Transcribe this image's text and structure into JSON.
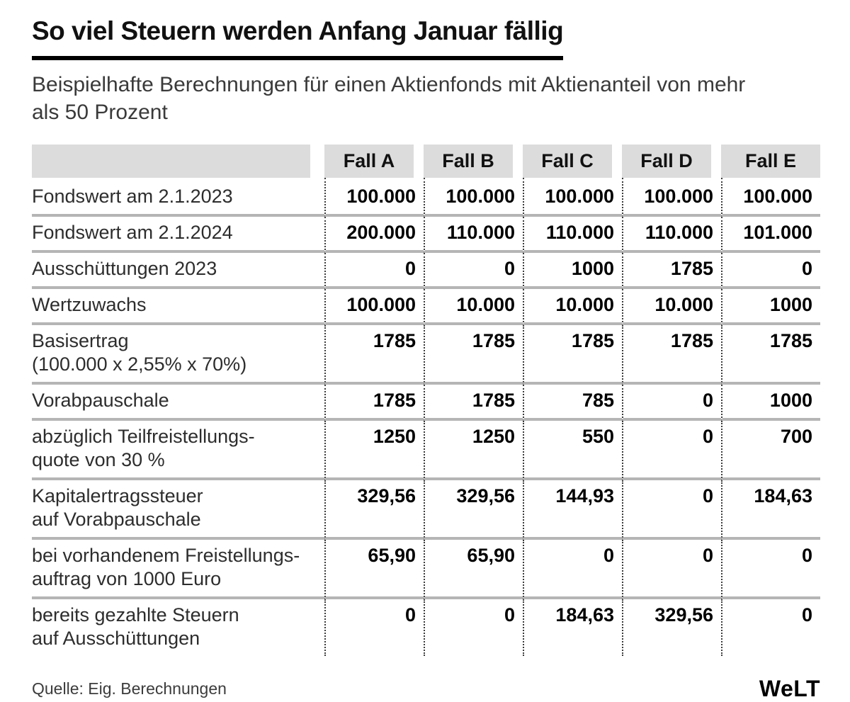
{
  "header": {
    "title": "So viel Steuern werden Anfang Januar fällig",
    "subtitle": "Beispielhafte Berechnungen für einen Aktienfonds mit Aktienanteil von mehr als 50 Prozent"
  },
  "chart_data": {
    "type": "table",
    "columns": [
      "Fall A",
      "Fall B",
      "Fall C",
      "Fall D",
      "Fall E"
    ],
    "rows": [
      {
        "label_lines": [
          "Fondswert am 2.1.2023"
        ],
        "values": [
          "100.000",
          "100.000",
          "100.000",
          "100.000",
          "100.000"
        ]
      },
      {
        "label_lines": [
          "Fondswert am 2.1.2024"
        ],
        "values": [
          "200.000",
          "110.000",
          "110.000",
          "110.000",
          "101.000"
        ]
      },
      {
        "label_lines": [
          "Ausschüttungen 2023"
        ],
        "values": [
          "0",
          "0",
          "1000",
          "1785",
          "0"
        ]
      },
      {
        "label_lines": [
          "Wertzuwachs"
        ],
        "values": [
          "100.000",
          "10.000",
          "10.000",
          "10.000",
          "1000"
        ]
      },
      {
        "label_lines": [
          "Basisertrag",
          "(100.000 x 2,55% x 70%)"
        ],
        "values": [
          "1785",
          "1785",
          "1785",
          "1785",
          "1785"
        ]
      },
      {
        "label_lines": [
          "Vorabpauschale"
        ],
        "values": [
          "1785",
          "1785",
          "785",
          "0",
          "1000"
        ]
      },
      {
        "label_lines": [
          "abzüglich Teilfreistellungs-",
          "quote von 30 %"
        ],
        "values": [
          "1250",
          "1250",
          "550",
          "0",
          "700"
        ]
      },
      {
        "label_lines": [
          "Kapitalertragssteuer",
          "auf Vorabpauschale"
        ],
        "values": [
          "329,56",
          "329,56",
          "144,93",
          "0",
          "184,63"
        ]
      },
      {
        "label_lines": [
          "bei vorhandenem Freistellungs-",
          "auftrag von 1000 Euro"
        ],
        "values": [
          "65,90",
          "65,90",
          "0",
          "0",
          "0"
        ]
      },
      {
        "label_lines": [
          "bereits gezahlte Steuern",
          "auf Ausschüttungen"
        ],
        "values": [
          "0",
          "0",
          "184,63",
          "329,56",
          "0"
        ]
      }
    ]
  },
  "footer": {
    "source": "Quelle: Eig. Berechnungen",
    "logo_text": "WeLT"
  },
  "colors": {
    "header_bg": "#dcdcdc",
    "row_separator": "#b5b5b5",
    "dotted_line": "#3c3c3c",
    "title_underline": "#000000",
    "subtitle_text": "#3a3a3a"
  }
}
